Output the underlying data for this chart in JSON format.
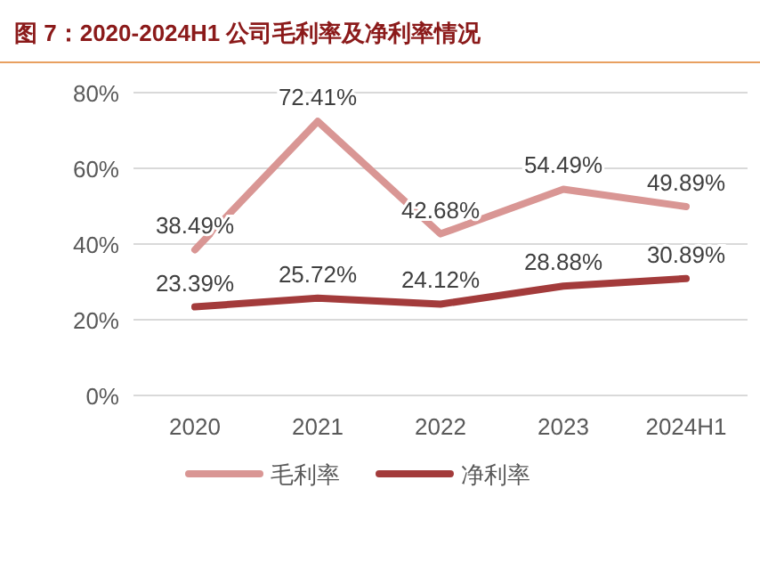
{
  "chart_data": {
    "type": "line",
    "title": "图 7：2020-2024H1 公司毛利率及净利率情况",
    "categories": [
      "2020",
      "2021",
      "2022",
      "2023",
      "2024H1"
    ],
    "series": [
      {
        "name": "毛利率",
        "color": "#d99694",
        "values": [
          38.49,
          72.41,
          42.68,
          54.49,
          49.89
        ],
        "value_labels": [
          "38.49%",
          "72.41%",
          "42.68%",
          "54.49%",
          "49.89%"
        ]
      },
      {
        "name": "净利率",
        "color": "#a33b3b",
        "values": [
          23.39,
          25.72,
          24.12,
          28.88,
          30.89
        ],
        "value_labels": [
          "23.39%",
          "25.72%",
          "24.12%",
          "28.88%",
          "30.89%"
        ]
      }
    ],
    "ylim": [
      0,
      80
    ],
    "yticks": [
      {
        "value": 0,
        "label": "0%"
      },
      {
        "value": 20,
        "label": "20%"
      },
      {
        "value": 40,
        "label": "40%"
      },
      {
        "value": 60,
        "label": "60%"
      },
      {
        "value": 80,
        "label": "80%"
      }
    ],
    "grid": "y",
    "legend": "bottom"
  }
}
